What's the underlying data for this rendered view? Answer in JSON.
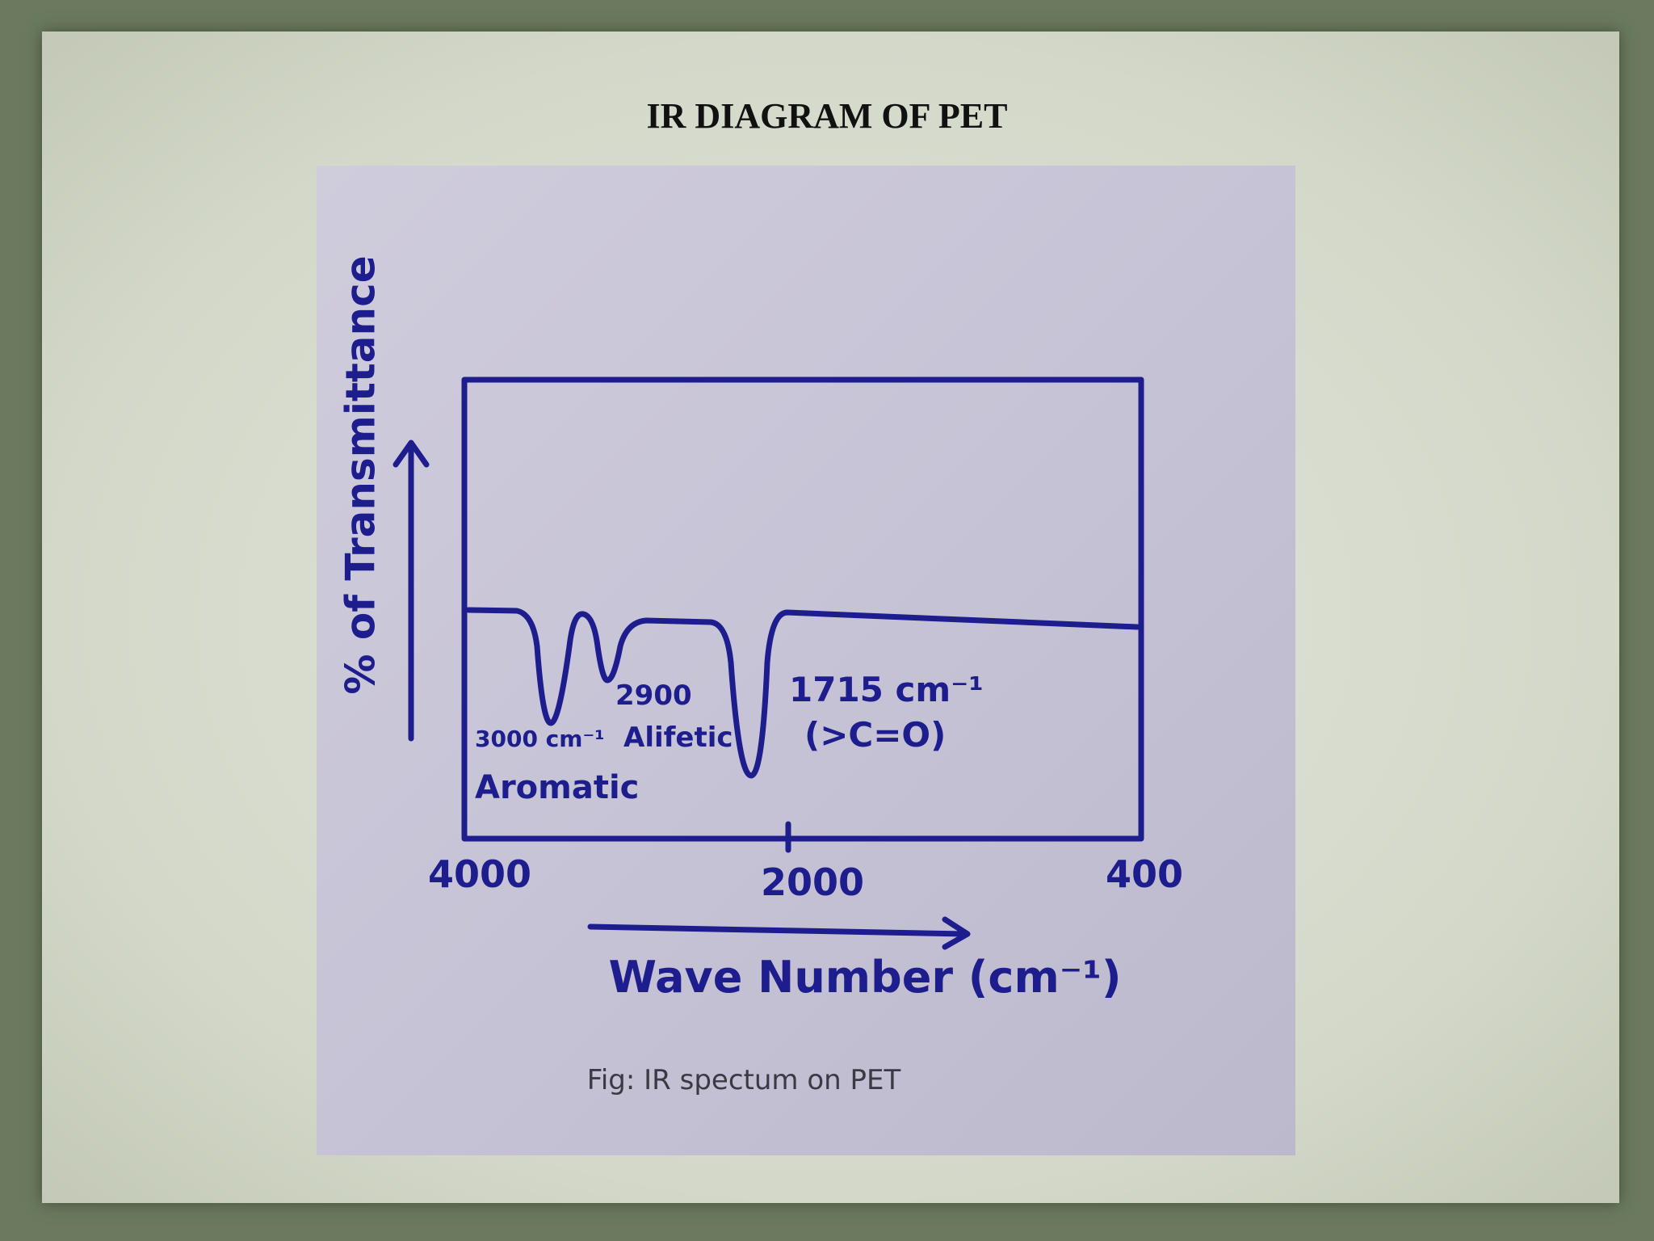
{
  "title": "IR DIAGRAM OF PET",
  "figure": {
    "y_label": "% of Transmittance",
    "x_label": "Wave Number (cm⁻¹)",
    "x_tick_labels": [
      "4000",
      "2000",
      "400"
    ],
    "annotations": {
      "peak_3000": "3000 cm⁻¹",
      "peak_3000_group": "Aromatic",
      "peak_2900": "2900",
      "peak_2900_group": "Alifetic",
      "peak_1715": "1715 cm⁻¹",
      "peak_1715_group": "(>C=O)"
    },
    "caption": "Fig: IR spectum on PET"
  }
}
